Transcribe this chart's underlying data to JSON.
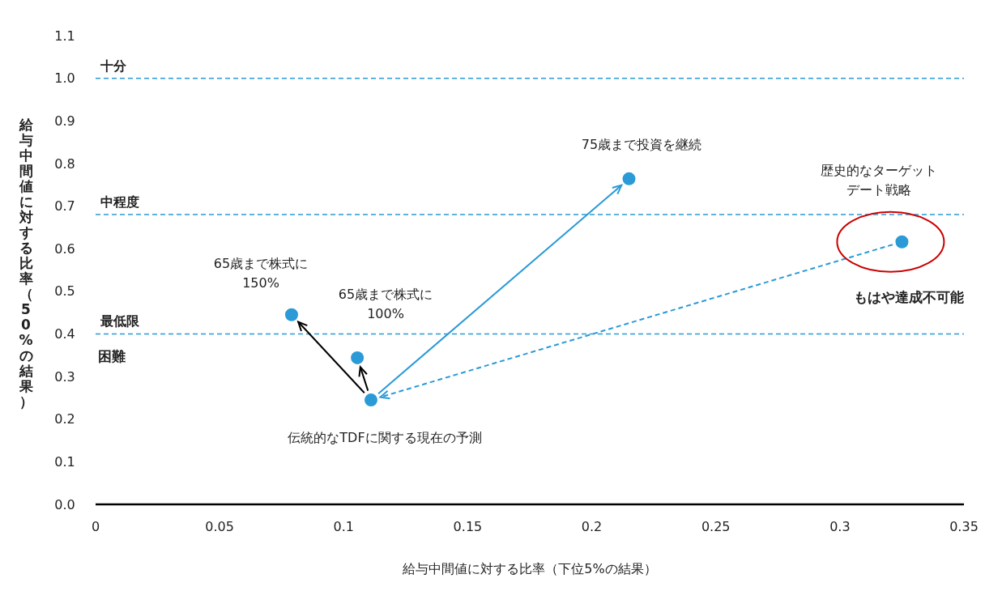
{
  "chart_data": {
    "type": "scatter",
    "xlabel": "給与中間値に対する比率（下位5%の結果）",
    "ylabel": "給与中間値に対する比率（50%の結果）",
    "x": [
      0.079,
      0.1055,
      0.111,
      0.215,
      0.325
    ],
    "series": [
      {
        "color": "#2b9ad6",
        "values": [
          0.445,
          0.344,
          0.245,
          0.764,
          0.616
        ]
      }
    ],
    "marker": "circle",
    "grid": false,
    "xlim": [
      0,
      0.35
    ],
    "xticks": [
      {
        "value": 0,
        "label": "0"
      },
      0.05,
      0.1,
      0.15,
      0.2,
      0.25,
      0.3,
      0.35
    ],
    "ylim": [
      0,
      1.1
    ],
    "yticks": [
      {
        "value": 0,
        "label": "0.0"
      },
      0.1,
      0.2,
      0.3,
      0.4,
      0.5,
      0.6,
      0.7,
      0.8,
      0.9,
      {
        "value": 1,
        "label": "1.0"
      },
      1.1
    ],
    "ref_lines": [
      {
        "axis": "y",
        "value": 1.0,
        "label": "十分",
        "color": "#2b9ad6",
        "line_style": "dashed"
      },
      {
        "axis": "y",
        "value": 0.68,
        "label": "中程度",
        "color": "#2b9ad6",
        "line_style": "dashed"
      },
      {
        "axis": "y",
        "value": 0.4,
        "label": "最低限",
        "color": "#2b9ad6",
        "line_style": "dashed"
      }
    ],
    "annotations": [
      "困難",
      "65歳まで株式に150%",
      "65歳まで株式に100%",
      "伝統的なTDFに関する現在の予測",
      "75歳まで投資を継続",
      "歴史的なターゲットデート戦略",
      "もはや達成不可能"
    ]
  }
}
